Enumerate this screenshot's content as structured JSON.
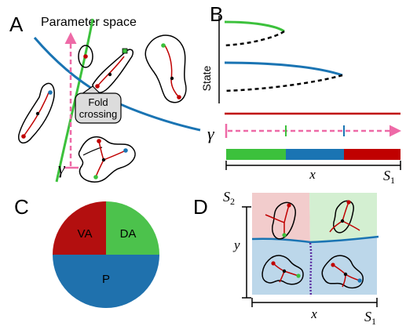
{
  "colors": {
    "green": "#3cc13c",
    "blue": "#1a74b3",
    "red": "#c00000",
    "pink": "#ee6aa7",
    "purple": "#5a2aa0",
    "pie_red": "#b30f0f",
    "pie_green": "#4cc24c",
    "pie_blue": "#1f71ad",
    "bg_red": "#f2cccc",
    "bg_green": "#d3efd1",
    "bg_blue": "#bcd7ea"
  },
  "panel_a": {
    "letter": "A",
    "title": "Parameter space",
    "callout": [
      "Fold",
      "crossing"
    ],
    "gamma": "γ"
  },
  "panel_b": {
    "letter": "B",
    "ylabel": "State",
    "gamma": "γ",
    "xlabel": "x",
    "x_end_label": "S",
    "x_end_sub": "1"
  },
  "panel_c": {
    "letter": "C",
    "slices": [
      {
        "label": "VA",
        "color": "#b30f0f",
        "fraction": 0.25
      },
      {
        "label": "DA",
        "color": "#4cc24c",
        "fraction": 0.25
      },
      {
        "label": "P",
        "color": "#1f71ad",
        "fraction": 0.5
      }
    ]
  },
  "panel_d": {
    "letter": "D",
    "ylabel": "y",
    "y_end_label": "S",
    "y_end_sub": "2",
    "xlabel": "x",
    "x_end_label": "S",
    "x_end_sub": "1"
  }
}
